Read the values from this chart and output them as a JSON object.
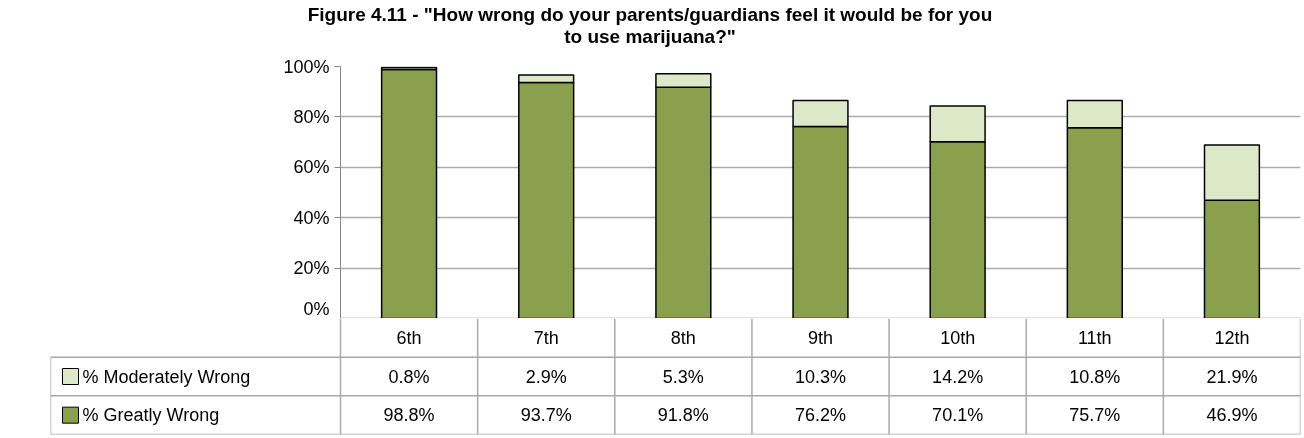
{
  "chart_data": {
    "type": "bar",
    "stacked": true,
    "title": "Figure 4.11 - \"How wrong do your parents/guardians feel it would be for you to use marijuana?\"",
    "categories": [
      "6th",
      "7th",
      "8th",
      "9th",
      "10th",
      "11th",
      "12th"
    ],
    "series": [
      {
        "name": "% Greatly Wrong",
        "color": "#8aa04c",
        "values": [
          98.8,
          93.7,
          91.8,
          76.2,
          70.1,
          75.7,
          46.9
        ],
        "value_labels": [
          "98.8%",
          "93.7%",
          "91.8%",
          "76.2%",
          "70.1%",
          "75.7%",
          "46.9%"
        ]
      },
      {
        "name": "% Moderately Wrong",
        "color": "#dde8c8",
        "values": [
          0.8,
          2.9,
          5.3,
          10.3,
          14.2,
          10.8,
          21.9
        ],
        "value_labels": [
          "0.8%",
          "2.9%",
          "5.3%",
          "10.3%",
          "14.2%",
          "10.8%",
          "21.9%"
        ]
      }
    ],
    "ylim": [
      0,
      100
    ],
    "yticks": [
      {
        "value": 0,
        "label": "0%"
      },
      {
        "value": 20,
        "label": "20%"
      },
      {
        "value": 40,
        "label": "40%"
      },
      {
        "value": 60,
        "label": "60%"
      },
      {
        "value": 80,
        "label": "80%"
      },
      {
        "value": 100,
        "label": "100%"
      }
    ],
    "grid": "y",
    "legend": "bottom"
  }
}
